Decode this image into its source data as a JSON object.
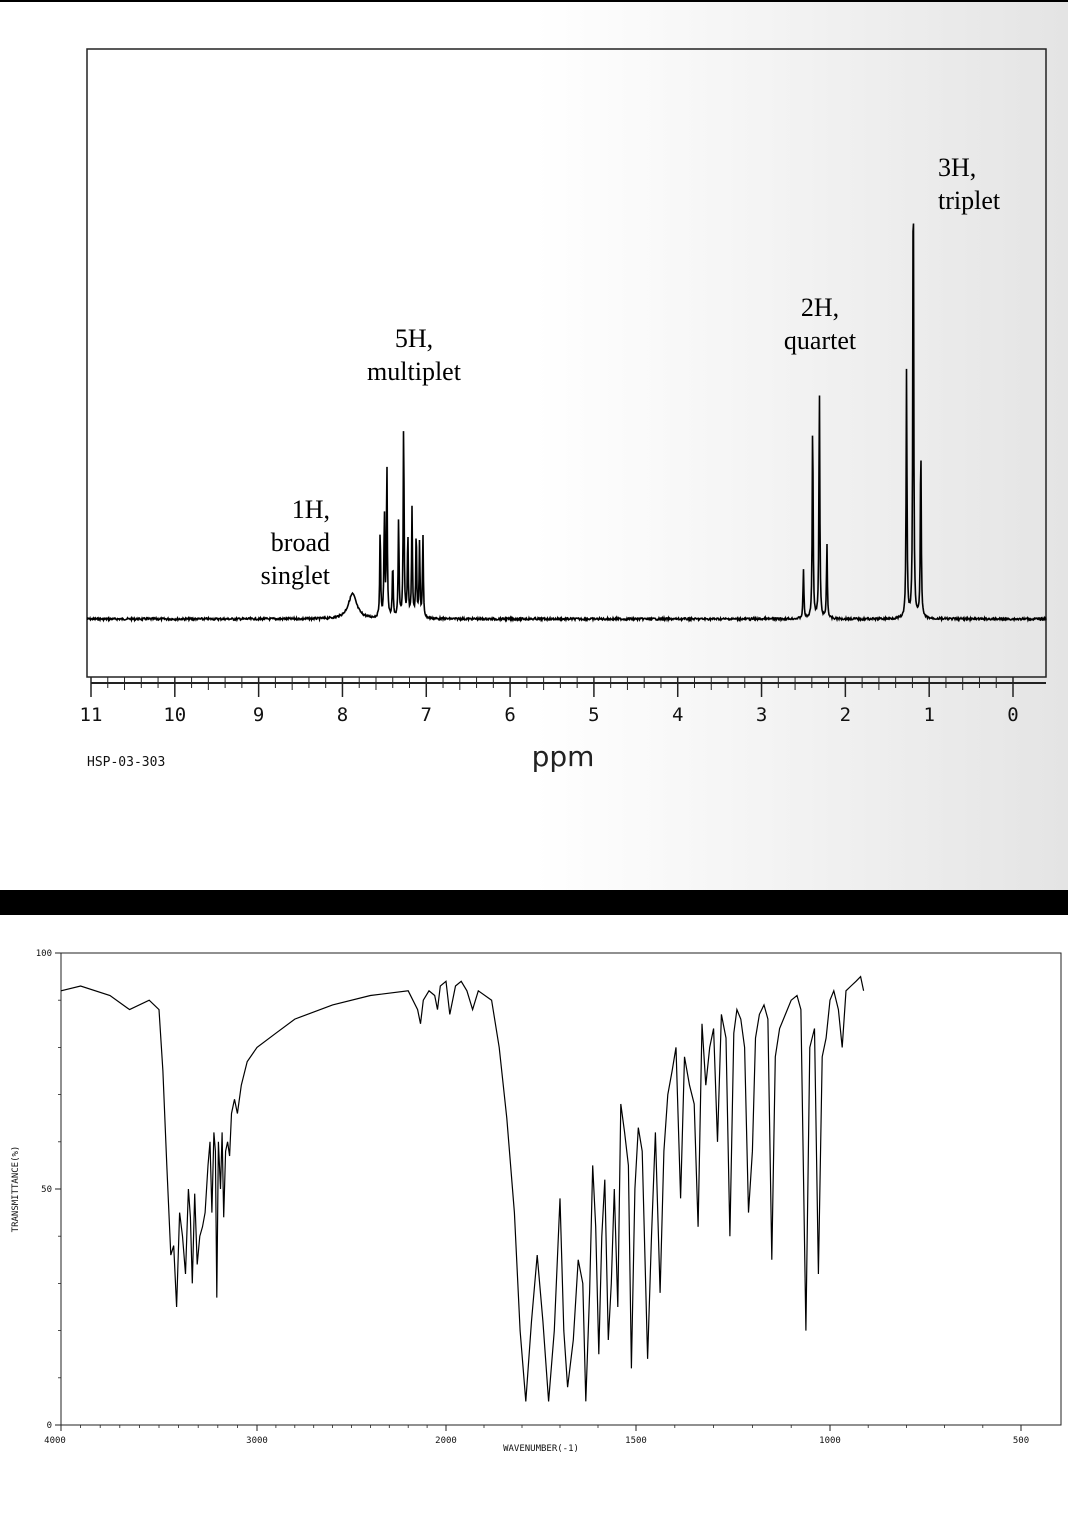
{
  "nmr": {
    "chart_data": {
      "type": "line",
      "xlabel": "ppm",
      "xlim": [
        11,
        0
      ],
      "x_ticks": [
        "11",
        "10",
        "9",
        "8",
        "7",
        "6",
        "5",
        "4",
        "3",
        "2",
        "1",
        "0"
      ],
      "reversed_x": true,
      "spectrum_code": "HSP-03-303",
      "baseline": 0,
      "peaks": [
        {
          "ppm": 7.88,
          "height": 0.1,
          "width": 0.06
        },
        {
          "ppm": 7.55,
          "height": 0.36,
          "width": 0.006
        },
        {
          "ppm": 7.5,
          "height": 0.42,
          "width": 0.006
        },
        {
          "ppm": 7.47,
          "height": 0.62,
          "width": 0.006
        },
        {
          "ppm": 7.4,
          "height": 0.22,
          "width": 0.006
        },
        {
          "ppm": 7.33,
          "height": 0.4,
          "width": 0.006
        },
        {
          "ppm": 7.27,
          "height": 0.8,
          "width": 0.006
        },
        {
          "ppm": 7.22,
          "height": 0.34,
          "width": 0.006
        },
        {
          "ppm": 7.17,
          "height": 0.44,
          "width": 0.006
        },
        {
          "ppm": 7.12,
          "height": 0.36,
          "width": 0.006
        },
        {
          "ppm": 7.08,
          "height": 0.3,
          "width": 0.006
        },
        {
          "ppm": 7.04,
          "height": 0.33,
          "width": 0.006
        },
        {
          "ppm": 2.5,
          "height": 0.2,
          "width": 0.006
        },
        {
          "ppm": 2.39,
          "height": 0.82,
          "width": 0.006
        },
        {
          "ppm": 2.31,
          "height": 0.94,
          "width": 0.006
        },
        {
          "ppm": 2.22,
          "height": 0.3,
          "width": 0.006
        },
        {
          "ppm": 1.27,
          "height": 1.0,
          "width": 0.006
        },
        {
          "ppm": 1.19,
          "height": 1.94,
          "width": 0.006
        },
        {
          "ppm": 1.1,
          "height": 0.72,
          "width": 0.006
        }
      ],
      "annotations": [
        {
          "lines": [
            "1H,",
            "broad",
            "singlet"
          ],
          "ppm": 7.88,
          "align": "end"
        },
        {
          "lines": [
            "5H,",
            "multiplet"
          ],
          "ppm": 7.2,
          "align": "middle"
        },
        {
          "lines": [
            "2H,",
            "quartet"
          ],
          "ppm": 2.3,
          "align": "middle"
        },
        {
          "lines": [
            "3H,",
            "triplet"
          ],
          "ppm": 1.2,
          "align": "start"
        }
      ]
    }
  },
  "ir": {
    "chart_data": {
      "type": "line",
      "xlabel": "WAVENUMBER(-1)",
      "ylabel": "TRANSMITTANCE(%)",
      "xlim": [
        4000,
        450
      ],
      "ylim": [
        0,
        100
      ],
      "x_ticks": [
        "4000",
        "3000",
        "2000",
        "1500",
        "1000",
        "500"
      ],
      "y_ticks": [
        "0",
        "50",
        "100"
      ],
      "points": [
        [
          4000,
          92
        ],
        [
          3900,
          93
        ],
        [
          3750,
          91
        ],
        [
          3650,
          88
        ],
        [
          3550,
          90
        ],
        [
          3500,
          88
        ],
        [
          3480,
          75
        ],
        [
          3460,
          55
        ],
        [
          3440,
          36
        ],
        [
          3425,
          38
        ],
        [
          3410,
          25
        ],
        [
          3395,
          45
        ],
        [
          3380,
          40
        ],
        [
          3365,
          32
        ],
        [
          3350,
          50
        ],
        [
          3340,
          44
        ],
        [
          3330,
          30
        ],
        [
          3318,
          49
        ],
        [
          3305,
          34
        ],
        [
          3292,
          40
        ],
        [
          3278,
          42
        ],
        [
          3265,
          45
        ],
        [
          3250,
          55
        ],
        [
          3240,
          60
        ],
        [
          3230,
          45
        ],
        [
          3220,
          62
        ],
        [
          3212,
          58
        ],
        [
          3205,
          27
        ],
        [
          3197,
          60
        ],
        [
          3186,
          50
        ],
        [
          3178,
          62
        ],
        [
          3170,
          44
        ],
        [
          3160,
          58
        ],
        [
          3150,
          60
        ],
        [
          3140,
          57
        ],
        [
          3130,
          66
        ],
        [
          3115,
          69
        ],
        [
          3100,
          66
        ],
        [
          3080,
          72
        ],
        [
          3050,
          77
        ],
        [
          3000,
          80
        ],
        [
          2900,
          83
        ],
        [
          2800,
          86
        ],
        [
          2600,
          89
        ],
        [
          2400,
          91
        ],
        [
          2200,
          92
        ],
        [
          2150,
          88
        ],
        [
          2135,
          85
        ],
        [
          2120,
          90
        ],
        [
          2090,
          92
        ],
        [
          2060,
          91
        ],
        [
          2045,
          88
        ],
        [
          2030,
          93
        ],
        [
          2000,
          94
        ],
        [
          1990,
          87
        ],
        [
          1975,
          93
        ],
        [
          1960,
          94
        ],
        [
          1945,
          92
        ],
        [
          1930,
          88
        ],
        [
          1915,
          92
        ],
        [
          1880,
          90
        ],
        [
          1860,
          80
        ],
        [
          1840,
          65
        ],
        [
          1820,
          45
        ],
        [
          1805,
          20
        ],
        [
          1790,
          5
        ],
        [
          1775,
          22
        ],
        [
          1760,
          36
        ],
        [
          1745,
          22
        ],
        [
          1730,
          5
        ],
        [
          1715,
          20
        ],
        [
          1700,
          48
        ],
        [
          1690,
          20
        ],
        [
          1680,
          8
        ],
        [
          1665,
          18
        ],
        [
          1652,
          35
        ],
        [
          1640,
          30
        ],
        [
          1632,
          5
        ],
        [
          1622,
          28
        ],
        [
          1614,
          55
        ],
        [
          1606,
          42
        ],
        [
          1598,
          15
        ],
        [
          1590,
          40
        ],
        [
          1582,
          52
        ],
        [
          1573,
          18
        ],
        [
          1565,
          30
        ],
        [
          1557,
          50
        ],
        [
          1548,
          25
        ],
        [
          1540,
          68
        ],
        [
          1530,
          62
        ],
        [
          1520,
          55
        ],
        [
          1512,
          12
        ],
        [
          1503,
          50
        ],
        [
          1494,
          63
        ],
        [
          1484,
          58
        ],
        [
          1470,
          14
        ],
        [
          1460,
          40
        ],
        [
          1450,
          62
        ],
        [
          1438,
          28
        ],
        [
          1428,
          58
        ],
        [
          1418,
          70
        ],
        [
          1407,
          75
        ],
        [
          1397,
          80
        ],
        [
          1385,
          48
        ],
        [
          1375,
          78
        ],
        [
          1362,
          72
        ],
        [
          1350,
          68
        ],
        [
          1340,
          42
        ],
        [
          1330,
          85
        ],
        [
          1320,
          72
        ],
        [
          1310,
          80
        ],
        [
          1300,
          84
        ],
        [
          1290,
          60
        ],
        [
          1280,
          87
        ],
        [
          1268,
          82
        ],
        [
          1258,
          40
        ],
        [
          1248,
          83
        ],
        [
          1240,
          88
        ],
        [
          1230,
          86
        ],
        [
          1220,
          80
        ],
        [
          1210,
          45
        ],
        [
          1200,
          58
        ],
        [
          1192,
          82
        ],
        [
          1182,
          87
        ],
        [
          1170,
          89
        ],
        [
          1160,
          86
        ],
        [
          1150,
          35
        ],
        [
          1141,
          78
        ],
        [
          1130,
          84
        ],
        [
          1115,
          87
        ],
        [
          1100,
          90
        ],
        [
          1085,
          91
        ],
        [
          1075,
          88
        ],
        [
          1062,
          20
        ],
        [
          1052,
          80
        ],
        [
          1040,
          84
        ],
        [
          1030,
          32
        ],
        [
          1020,
          78
        ],
        [
          1010,
          82
        ],
        [
          1000,
          90
        ],
        [
          990,
          92
        ],
        [
          978,
          88
        ],
        [
          968,
          80
        ],
        [
          958,
          92
        ],
        [
          945,
          93
        ],
        [
          932,
          94
        ],
        [
          920,
          95
        ],
        [
          912,
          92
        ]
      ]
    }
  }
}
